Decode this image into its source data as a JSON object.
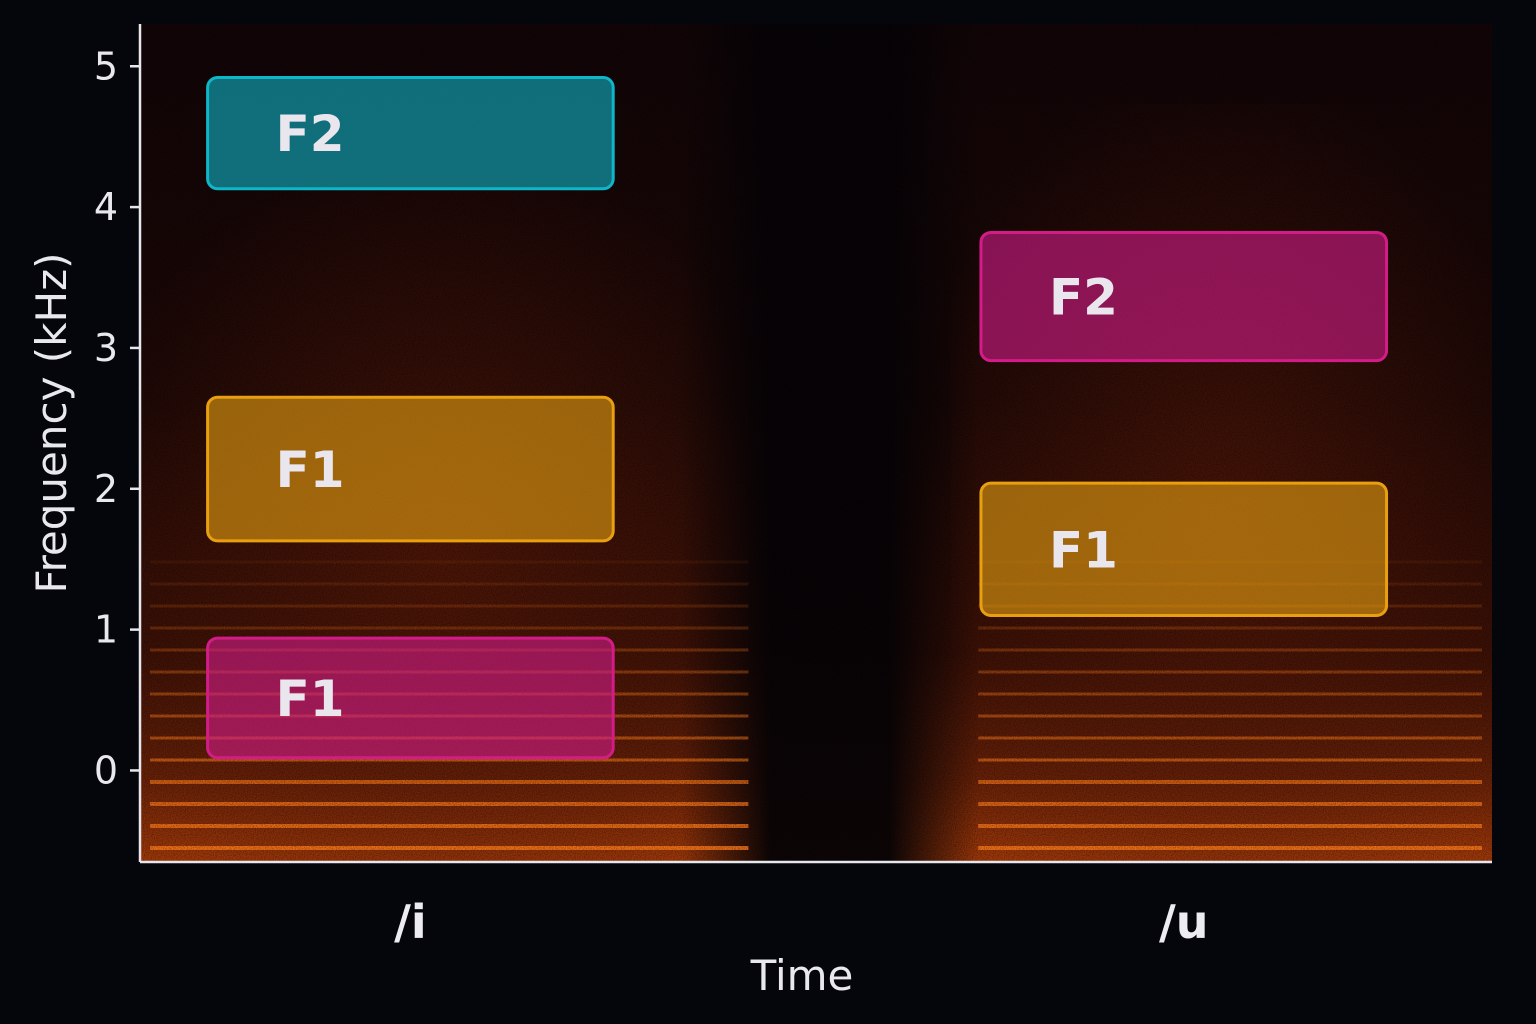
{
  "chart_data": {
    "type": "spectrogram",
    "xlabel": "Time",
    "ylabel": "Frequency (kHz)",
    "ylim": [
      -0.65,
      5.3
    ],
    "yticks": [
      0,
      1,
      2,
      3,
      4,
      5
    ],
    "categories": [
      "/i",
      "/u"
    ],
    "background": "spectrogram heat (black to orange)",
    "grid": false,
    "bands": [
      {
        "label": "F2",
        "category": "/i",
        "y_low": 4.13,
        "y_high": 4.92,
        "color": "#0fb6c8"
      },
      {
        "label": "F1",
        "category": "/i",
        "y_low": 1.63,
        "y_high": 2.65,
        "color": "#e8a010"
      },
      {
        "label": "F1",
        "category": "/i",
        "y_low": 0.09,
        "y_high": 0.94,
        "color": "#d41c88"
      },
      {
        "label": "F2",
        "category": "/u",
        "y_low": 2.91,
        "y_high": 3.82,
        "color": "#d41c88"
      },
      {
        "label": "F1",
        "category": "/u",
        "y_low": 1.1,
        "y_high": 2.04,
        "color": "#e8a010"
      }
    ]
  }
}
